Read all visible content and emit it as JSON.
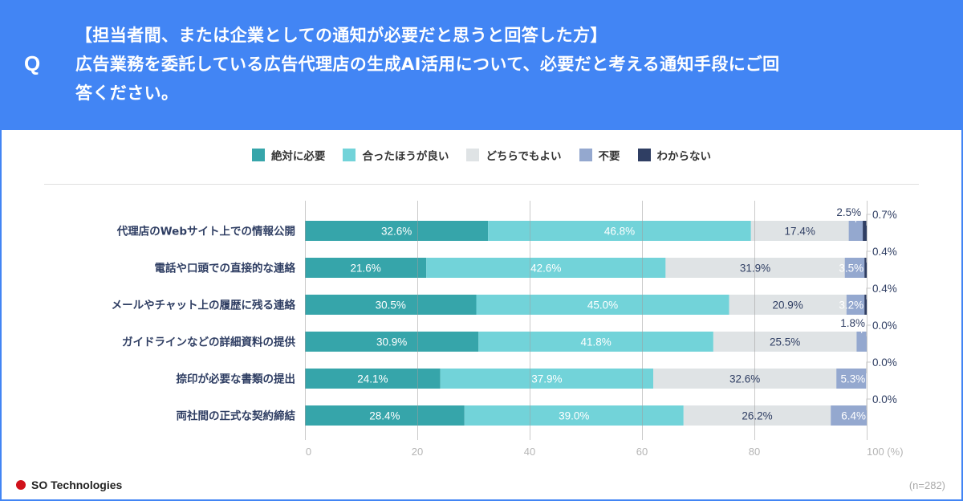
{
  "header": {
    "q_mark": "Q",
    "lines": [
      "【担当者間、または企業としての通知が必要だと思うと回答した方】",
      "広告業務を委託している広告代理店の生成AI活用について、必要だと考える通知手段にご回",
      "答ください。"
    ]
  },
  "footer": {
    "brand": "SO Technologies",
    "sample": "(n=282)"
  },
  "colors": {
    "header_bg": "#4285f4",
    "series": [
      "#36a5aa",
      "#72d3d9",
      "#dfe3e5",
      "#94a8cf",
      "#2f3e63"
    ]
  },
  "chart_data": {
    "type": "bar",
    "orientation": "horizontal",
    "stacked": true,
    "title": "",
    "xlabel": "",
    "ylabel": "",
    "xlim": [
      0,
      100
    ],
    "x_ticks": [
      "0",
      "20",
      "40",
      "60",
      "80",
      "100 (%)"
    ],
    "x_tick_values": [
      0,
      20,
      40,
      60,
      80,
      100
    ],
    "grid": true,
    "legend_position": "top-center",
    "categories": [
      "代理店のWebサイト上での情報公開",
      "電話や口頭での直接的な連絡",
      "メールやチャット上の履歴に残る連絡",
      "ガイドラインなどの詳細資料の提供",
      "捺印が必要な書類の提出",
      "両社間の正式な契約締結"
    ],
    "series": [
      {
        "name": "絶対に必要",
        "values": [
          32.6,
          21.6,
          30.5,
          30.9,
          24.1,
          28.4
        ],
        "labels": [
          "32.6%",
          "21.6%",
          "30.5%",
          "30.9%",
          "24.1%",
          "28.4%"
        ]
      },
      {
        "name": "合ったほうが良い",
        "values": [
          46.8,
          42.6,
          45.0,
          41.8,
          37.9,
          39.0
        ],
        "labels": [
          "46.8%",
          "42.6%",
          "45.0%",
          "41.8%",
          "37.9%",
          "39.0%"
        ]
      },
      {
        "name": "どちらでもよい",
        "values": [
          17.4,
          31.9,
          20.9,
          25.5,
          32.6,
          26.2
        ],
        "labels": [
          "17.4%",
          "31.9%",
          "20.9%",
          "25.5%",
          "32.6%",
          "26.2%"
        ]
      },
      {
        "name": "不要",
        "values": [
          2.5,
          3.5,
          3.2,
          1.8,
          5.3,
          6.4
        ],
        "labels": [
          "2.5%",
          "3.5%",
          "3.2%",
          "1.8%",
          "5.3%",
          "6.4%"
        ]
      },
      {
        "name": "わからない",
        "values": [
          0.7,
          0.4,
          0.4,
          0.0,
          0.0,
          0.0
        ],
        "labels": [
          "0.7%",
          "0.4%",
          "0.4%",
          "0.0%",
          "0.0%",
          "0.0%"
        ]
      }
    ]
  }
}
